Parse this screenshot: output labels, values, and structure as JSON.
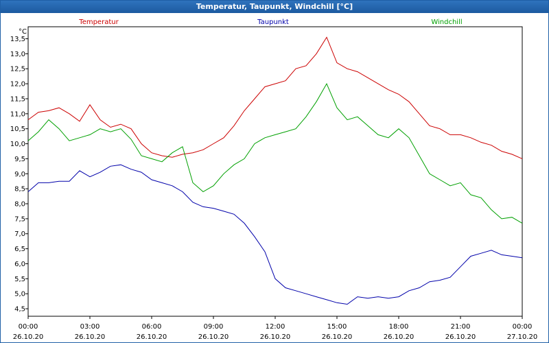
{
  "window": {
    "title": "Temperatur, Taupunkt, Windchill [°C]"
  },
  "chart_data": {
    "type": "line",
    "title": "Temperatur, Taupunkt, Windchill [°C]",
    "ylabel": "°C",
    "ylim": [
      4.25,
      13.9
    ],
    "xlim": [
      0,
      24
    ],
    "grid": true,
    "legend": "top (labels centered in thirds)",
    "y_ticks": [
      "4,5",
      "5,0",
      "5,5",
      "6,0",
      "6,5",
      "7,0",
      "7,5",
      "8,0",
      "8,5",
      "9,0",
      "9,5",
      "10,0",
      "10,5",
      "11,0",
      "11,5",
      "12,0",
      "12,5",
      "13,0",
      "13,5"
    ],
    "x_ticks": [
      {
        "time": "00:00",
        "date": "26.10.20"
      },
      {
        "time": "03:00",
        "date": "26.10.20"
      },
      {
        "time": "06:00",
        "date": "26.10.20"
      },
      {
        "time": "09:00",
        "date": "26.10.20"
      },
      {
        "time": "12:00",
        "date": "26.10.20"
      },
      {
        "time": "15:00",
        "date": "26.10.20"
      },
      {
        "time": "18:00",
        "date": "26.10.20"
      },
      {
        "time": "21:00",
        "date": "26.10.20"
      },
      {
        "time": "00:00",
        "date": "27.10.20"
      }
    ],
    "series": [
      {
        "name": "Temperatur",
        "color": "#cc0000",
        "points": [
          [
            0,
            10.8
          ],
          [
            0.5,
            11.05
          ],
          [
            1,
            11.1
          ],
          [
            1.5,
            11.2
          ],
          [
            2,
            11.0
          ],
          [
            2.5,
            10.75
          ],
          [
            3,
            11.3
          ],
          [
            3.5,
            10.8
          ],
          [
            4,
            10.55
          ],
          [
            4.5,
            10.65
          ],
          [
            5,
            10.5
          ],
          [
            5.5,
            10.0
          ],
          [
            6,
            9.7
          ],
          [
            6.5,
            9.6
          ],
          [
            7,
            9.55
          ],
          [
            7.5,
            9.65
          ],
          [
            8,
            9.7
          ],
          [
            8.5,
            9.8
          ],
          [
            9,
            10.0
          ],
          [
            9.5,
            10.2
          ],
          [
            10,
            10.6
          ],
          [
            10.5,
            11.1
          ],
          [
            11,
            11.5
          ],
          [
            11.5,
            11.9
          ],
          [
            12,
            12.0
          ],
          [
            12.5,
            12.1
          ],
          [
            13,
            12.5
          ],
          [
            13.5,
            12.6
          ],
          [
            14,
            13.0
          ],
          [
            14.5,
            13.55
          ],
          [
            15,
            12.7
          ],
          [
            15.5,
            12.5
          ],
          [
            16,
            12.4
          ],
          [
            16.5,
            12.2
          ],
          [
            17,
            12.0
          ],
          [
            17.5,
            11.8
          ],
          [
            18,
            11.65
          ],
          [
            18.5,
            11.4
          ],
          [
            19,
            11.0
          ],
          [
            19.5,
            10.6
          ],
          [
            20,
            10.5
          ],
          [
            20.5,
            10.3
          ],
          [
            21,
            10.3
          ],
          [
            21.5,
            10.2
          ],
          [
            22,
            10.05
          ],
          [
            22.5,
            9.95
          ],
          [
            23,
            9.75
          ],
          [
            23.5,
            9.65
          ],
          [
            24,
            9.5
          ]
        ]
      },
      {
        "name": "Taupunkt",
        "color": "#0000aa",
        "points": [
          [
            0,
            8.4
          ],
          [
            0.5,
            8.7
          ],
          [
            1,
            8.7
          ],
          [
            1.5,
            8.75
          ],
          [
            2,
            8.75
          ],
          [
            2.5,
            9.1
          ],
          [
            3,
            8.9
          ],
          [
            3.5,
            9.05
          ],
          [
            4,
            9.25
          ],
          [
            4.5,
            9.3
          ],
          [
            5,
            9.15
          ],
          [
            5.5,
            9.05
          ],
          [
            6,
            8.8
          ],
          [
            6.5,
            8.7
          ],
          [
            7,
            8.6
          ],
          [
            7.5,
            8.4
          ],
          [
            8,
            8.05
          ],
          [
            8.5,
            7.9
          ],
          [
            9,
            7.85
          ],
          [
            9.5,
            7.75
          ],
          [
            10,
            7.65
          ],
          [
            10.5,
            7.35
          ],
          [
            11,
            6.9
          ],
          [
            11.5,
            6.4
          ],
          [
            12,
            5.5
          ],
          [
            12.5,
            5.2
          ],
          [
            13,
            5.1
          ],
          [
            13.5,
            5.0
          ],
          [
            14,
            4.9
          ],
          [
            14.5,
            4.8
          ],
          [
            15,
            4.7
          ],
          [
            15.5,
            4.65
          ],
          [
            16,
            4.9
          ],
          [
            16.5,
            4.85
          ],
          [
            17,
            4.9
          ],
          [
            17.5,
            4.85
          ],
          [
            18,
            4.9
          ],
          [
            18.5,
            5.1
          ],
          [
            19,
            5.2
          ],
          [
            19.5,
            5.4
          ],
          [
            20,
            5.45
          ],
          [
            20.5,
            5.55
          ],
          [
            21,
            5.9
          ],
          [
            21.5,
            6.25
          ],
          [
            22,
            6.35
          ],
          [
            22.5,
            6.45
          ],
          [
            23,
            6.3
          ],
          [
            23.5,
            6.25
          ],
          [
            24,
            6.2
          ]
        ]
      },
      {
        "name": "Windchill",
        "color": "#00a000",
        "points": [
          [
            0,
            10.1
          ],
          [
            0.5,
            10.4
          ],
          [
            1,
            10.8
          ],
          [
            1.5,
            10.5
          ],
          [
            2,
            10.1
          ],
          [
            2.5,
            10.2
          ],
          [
            3,
            10.3
          ],
          [
            3.5,
            10.5
          ],
          [
            4,
            10.4
          ],
          [
            4.5,
            10.5
          ],
          [
            5,
            10.15
          ],
          [
            5.5,
            9.6
          ],
          [
            6,
            9.5
          ],
          [
            6.5,
            9.4
          ],
          [
            7,
            9.7
          ],
          [
            7.5,
            9.9
          ],
          [
            8,
            8.7
          ],
          [
            8.5,
            8.4
          ],
          [
            9,
            8.6
          ],
          [
            9.5,
            9.0
          ],
          [
            10,
            9.3
          ],
          [
            10.5,
            9.5
          ],
          [
            11,
            10.0
          ],
          [
            11.5,
            10.2
          ],
          [
            12,
            10.3
          ],
          [
            12.5,
            10.4
          ],
          [
            13,
            10.5
          ],
          [
            13.5,
            10.9
          ],
          [
            14,
            11.4
          ],
          [
            14.5,
            12.0
          ],
          [
            15,
            11.2
          ],
          [
            15.5,
            10.8
          ],
          [
            16,
            10.9
          ],
          [
            16.5,
            10.6
          ],
          [
            17,
            10.3
          ],
          [
            17.5,
            10.2
          ],
          [
            18,
            10.5
          ],
          [
            18.5,
            10.2
          ],
          [
            19,
            9.6
          ],
          [
            19.5,
            9.0
          ],
          [
            20,
            8.8
          ],
          [
            20.5,
            8.6
          ],
          [
            21,
            8.7
          ],
          [
            21.5,
            8.3
          ],
          [
            22,
            8.2
          ],
          [
            22.5,
            7.8
          ],
          [
            23,
            7.5
          ],
          [
            23.5,
            7.55
          ],
          [
            24,
            7.35
          ]
        ]
      }
    ]
  }
}
